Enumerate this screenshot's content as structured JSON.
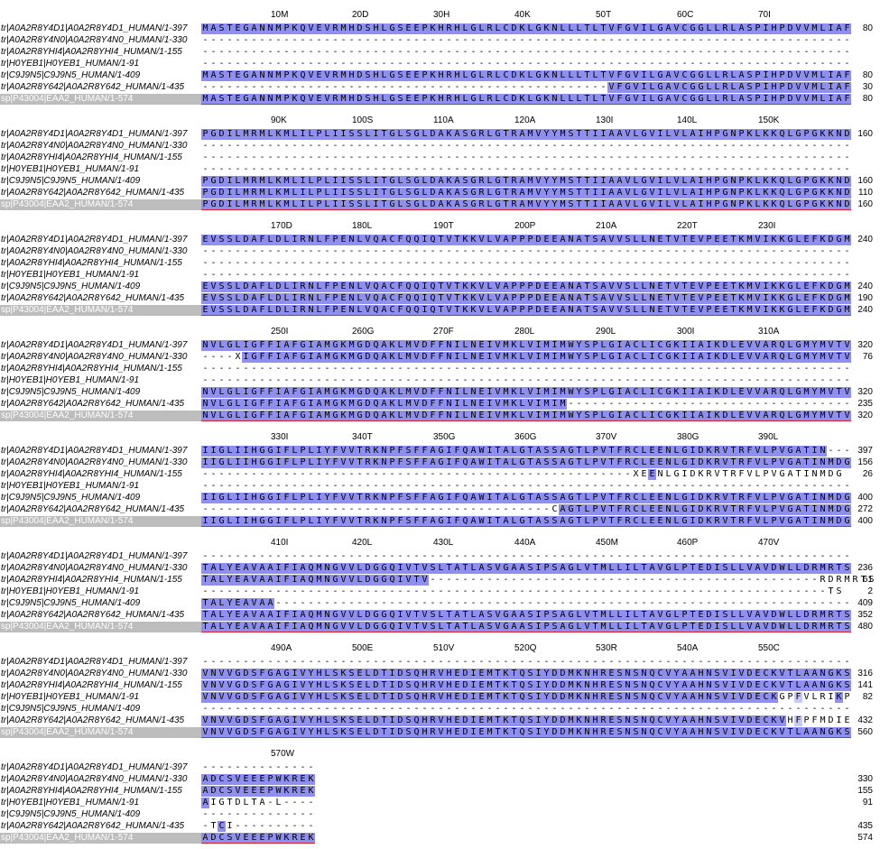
{
  "sequence_names": [
    "tr|A0A2R8Y4D1|A0A2R8Y4D1_HUMAN/1-397",
    "tr|A0A2R8Y4N0|A0A2R8Y4N0_HUMAN/1-330",
    "tr|A0A2R8YHI4|A0A2R8YHI4_HUMAN/1-155",
    "tr|H0YEB1|H0YEB1_HUMAN/1-91",
    "tr|C9J9N5|C9J9N5_HUMAN/1-409",
    "tr|A0A2R8Y642|A0A2R8Y642_HUMAN/1-435",
    "sp|P43004|EAA2_HUMAN/1-574"
  ],
  "blocks": [
    {
      "ruler": [
        {
          "p": 10,
          "label": "10M"
        },
        {
          "p": 20,
          "label": "20D"
        },
        {
          "p": 30,
          "label": "30H"
        },
        {
          "p": 40,
          "label": "40K"
        },
        {
          "p": 50,
          "label": "50T"
        },
        {
          "p": 60,
          "label": "60C"
        },
        {
          "p": 70,
          "label": "70I"
        }
      ],
      "rows": [
        "MASTEGANNMPKQVEVRMHDSHLGSEEPKHRHLGLRLCDKLGKNLLLTLTVFGVILGAVCGGLLRLASPIHPDVVMLIAF",
        "--------------------------------------------------------------------------------",
        "--------------------------------------------------------------------------------",
        "--------------------------------------------------------------------------------",
        "MASTEGANNMPKQVEVRMHDSHLGSEEPKHRHLGLRLCDKLGKNLLLTLTVFGVILGAVCGGLLRLASPIHPDVVMLIAF",
        "--------------------------------------------------VFGVILGAVCGGLLRLASPIHPDVVMLIAF",
        "MASTEGANNMPKQVEVRMHDSHLGSEEPKHRHLGLRLCDKLGKNLLLTLTVFGVILGAVCGGLLRLASPIHPDVVMLIAF"
      ],
      "ends": [
        "80",
        "",
        "",
        "",
        "80",
        "30",
        "80"
      ]
    },
    {
      "ruler": [
        {
          "p": 90,
          "label": "90K"
        },
        {
          "p": 100,
          "label": "100S"
        },
        {
          "p": 110,
          "label": "110A"
        },
        {
          "p": 120,
          "label": "120A"
        },
        {
          "p": 130,
          "label": "130I"
        },
        {
          "p": 140,
          "label": "140L"
        },
        {
          "p": 150,
          "label": "150K"
        }
      ],
      "rows": [
        "PGDILMRMLKMLILPLIISSLITGLSGLDAKASGRLGTRAMVYYMSTTIIAAVLGVILVLAIHPGNPKLKKQLGPGKKND",
        "--------------------------------------------------------------------------------",
        "--------------------------------------------------------------------------------",
        "--------------------------------------------------------------------------------",
        "PGDILMRMLKMLILPLIISSLITGLSGLDAKASGRLGTRAMVYYMSTTIIAAVLGVILVLAIHPGNPKLKKQLGPGKKND",
        "PGDILMRMLKMLILPLIISSLITGLSGLDAKASGRLGTRAMVYYMSTTIIAAVLGVILVLAIHPGNPKLKKQLGPGKKND",
        "PGDILMRMLKMLILPLIISSLITGLSGLDAKASGRLGTRAMVYYMSTTIIAAVLGVILVLAIHPGNPKLKKQLGPGKKND"
      ],
      "ends": [
        "160",
        "",
        "",
        "",
        "160",
        "110",
        "160"
      ]
    },
    {
      "ruler": [
        {
          "p": 170,
          "label": "170D"
        },
        {
          "p": 180,
          "label": "180L"
        },
        {
          "p": 190,
          "label": "190T"
        },
        {
          "p": 200,
          "label": "200P"
        },
        {
          "p": 210,
          "label": "210A"
        },
        {
          "p": 220,
          "label": "220T"
        },
        {
          "p": 230,
          "label": "230I"
        }
      ],
      "rows": [
        "EVSSLDAFLDLIRNLFPENLVQACFQQIQTVTKKVLVAPPPDEEANATSAVVSLLNETVTEVPEETKMVIKKGLEFKDGM",
        "--------------------------------------------------------------------------------",
        "--------------------------------------------------------------------------------",
        "--------------------------------------------------------------------------------",
        "EVSSLDAFLDLIRNLFPENLVQACFQQIQTVTKKVLVAPPPDEEANATSAVVSLLNETVTEVPEETKMVIKKGLEFKDGM",
        "EVSSLDAFLDLIRNLFPENLVQACFQQIQTVTKKVLVAPPPDEEANATSAVVSLLNETVTEVPEETKMVIKKGLEFKDGM",
        "EVSSLDAFLDLIRNLFPENLVQACFQQIQTVTKKVLVAPPPDEEANATSAVVSLLNETVTEVPEETKMVIKKGLEFKDGM"
      ],
      "ends": [
        "240",
        "",
        "",
        "",
        "240",
        "190",
        "240"
      ]
    },
    {
      "ruler": [
        {
          "p": 250,
          "label": "250I"
        },
        {
          "p": 260,
          "label": "260G"
        },
        {
          "p": 270,
          "label": "270F"
        },
        {
          "p": 280,
          "label": "280L"
        },
        {
          "p": 290,
          "label": "290L"
        },
        {
          "p": 300,
          "label": "300I"
        },
        {
          "p": 310,
          "label": "310A"
        }
      ],
      "rows": [
        "NVLGLIGFFIAFGIAMGKMGDQAKLMVDFFNILNEIVMKLVIMIMWYSPLGIACLICGKIIAIKDLEVVARQLGMYMVTV",
        "----XIGFFIAFGIAMGKMGDQAKLMVDFFNILNEIVMKLVIMIMWYSPLGIACLICGKIIAIKDLEVVARQLGMYMVTV",
        "--------------------------------------------------------------------------------",
        "--------------------------------------------------------------------------------",
        "NVLGLIGFFIAFGIAMGKMGDQAKLMVDFFNILNEIVMKLVIMIMWYSPLGIACLICGKIIAIKDLEVVARQLGMYMVTV",
        "NVLGLIGFFIAFGIAMGKMGDQAKLMVDFFNILNEIVMKLVIMIM-----------------------------------",
        "NVLGLIGFFIAFGIAMGKMGDQAKLMVDFFNILNEIVMKLVIMIMWYSPLGIACLICGKIIAIKDLEVVARQLGMYMVTV"
      ],
      "ends": [
        "320",
        "76",
        "",
        "",
        "320",
        "235",
        "320"
      ]
    },
    {
      "ruler": [
        {
          "p": 330,
          "label": "330I"
        },
        {
          "p": 340,
          "label": "340T"
        },
        {
          "p": 350,
          "label": "350G"
        },
        {
          "p": 360,
          "label": "360G"
        },
        {
          "p": 370,
          "label": "370V"
        },
        {
          "p": 380,
          "label": "380G"
        },
        {
          "p": 390,
          "label": "390L"
        }
      ],
      "rows": [
        "IIGLIIHGGIFLPLIYFVVTRKNPFSFFAGIFQAWITALGTASSAGTLPVTFRCLEENLGIDKRVTRFVLPVGATIN---",
        "IIGLIIHGGIFLPLIYFVVTRKNPFSFFAGIFQAWITALGTASSAGTLPVTFRCLEENLGIDKRVTRFVLPVGATINMDG",
        "-----------------------------------------------------XEENLGIDKRVTRFVLPVGATINMDG",
        "--------------------------------------------------------------------------------",
        "IIGLIIHGGIFLPLIYFVVTRKNPFSFFAGIFQAWITALGTASSAGTLPVTFRCLEENLGIDKRVTRFVLPVGATINMDG",
        "-------------------------------------------CAGTLPVTFRCLEENLGIDKRVTRFVLPVGATINMDG",
        "IIGLIIHGGIFLPLIYFVVTRKNPFSFFAGIFQAWITALGTASSAGTLPVTFRCLEENLGIDKRVTRFVLPVGATINMDG"
      ],
      "ends": [
        "397",
        "156",
        "26",
        "",
        "400",
        "272",
        "400"
      ]
    },
    {
      "ruler": [
        {
          "p": 410,
          "label": "410I"
        },
        {
          "p": 420,
          "label": "420L"
        },
        {
          "p": 430,
          "label": "430L"
        },
        {
          "p": 440,
          "label": "440A"
        },
        {
          "p": 450,
          "label": "450M"
        },
        {
          "p": 460,
          "label": "460P"
        },
        {
          "p": 470,
          "label": "470V"
        }
      ],
      "rows": [
        "--------------------------------------------------------------------------------",
        "TALYEAVAAIFIAQMNGVVLDGGQIVTVSLTATLASVGAASIPSAGLVTMLLILTAVGLPTEDISLLVAVDWLLDRMRTS",
        "TALYEAVAAIFIAQMNGVVLDGGQIVTV------------------------------------------------RDRMRTS",
        "-----------------------------------------------------------------------------TS",
        "TALYEAVAA-----------------------------------------------------------------------",
        "TALYEAVAAIFIAQMNGVVLDGGQIVTVSLTATLASVGAASIPSAGLVTMLLILTAVGLPTEDISLLVAVDWLLDRMRTS",
        "TALYEAVAAIFIAQMNGVVLDGGQIVTVSLTATLASVGAASIPSAGLVTMLLILTAVGLPTEDISLLVAVDWLLDRMRTS"
      ],
      "ends": [
        "",
        "236",
        "61",
        "2",
        "409",
        "352",
        "480"
      ]
    },
    {
      "ruler": [
        {
          "p": 490,
          "label": "490A"
        },
        {
          "p": 500,
          "label": "500E"
        },
        {
          "p": 510,
          "label": "510V"
        },
        {
          "p": 520,
          "label": "520Q"
        },
        {
          "p": 530,
          "label": "530R"
        },
        {
          "p": 540,
          "label": "540A"
        },
        {
          "p": 550,
          "label": "550C"
        }
      ],
      "rows": [
        "--------------------------------------------------------------------------------",
        "VNVVGDSFGAGIVYHLSKSELDTIDSQHRVHEDIEMTKTQSIYDDMKNHRESNSNQCVYAAHNSVIVDECKVTLAANGKS",
        "VNVVGDSFGAGIVYHLSKSELDTIDSQHRVHEDIEMTKTQSIYDDMKNHRESNSNQCVYAAHNSVIVDECKVTLAANGKS",
        "VNVVGDSFGAGIVYHLSKSELDTIDSQHRVHEDIEMTKTQSIYDDMKNHRESNSNQCVYAAHNSVIVDECKGPFVLRIKP",
        "--------------------------------------------------------------------------------",
        "VNVVGDSFGAGIVYHLSKSELDTIDSQHRVHEDIEMTKTQSIYDDMKNHRESNSNQCVYAAHNSVIVDECKVHFPFMDIE",
        "VNVVGDSFGAGIVYHLSKSELDTIDSQHRVHEDIEMTKTQSIYDDMKNHRESNSNQCVYAAHNSVIVDECKVTLAANGKS"
      ],
      "ends": [
        "",
        "316",
        "141",
        "82",
        "",
        "432",
        "560"
      ]
    },
    {
      "ruler": [
        {
          "p": 570,
          "label": "570W"
        }
      ],
      "rows": [
        "--------------",
        "ADCSVEEEPWKREK",
        "ADCSVEEEPWKREK",
        "AIGTDLTA-L----",
        "--------------",
        "-TCI----------",
        "ADCSVEEEPWKREK"
      ],
      "ends": [
        "",
        "330",
        "155",
        "91",
        "",
        "435",
        "574"
      ]
    }
  ],
  "colors": {
    "identity_high": "#8f8ff0",
    "identity_low": "#c9c9f6",
    "consensus_bg": "#bdbdbd",
    "consensus_underline": "#e0202a"
  }
}
